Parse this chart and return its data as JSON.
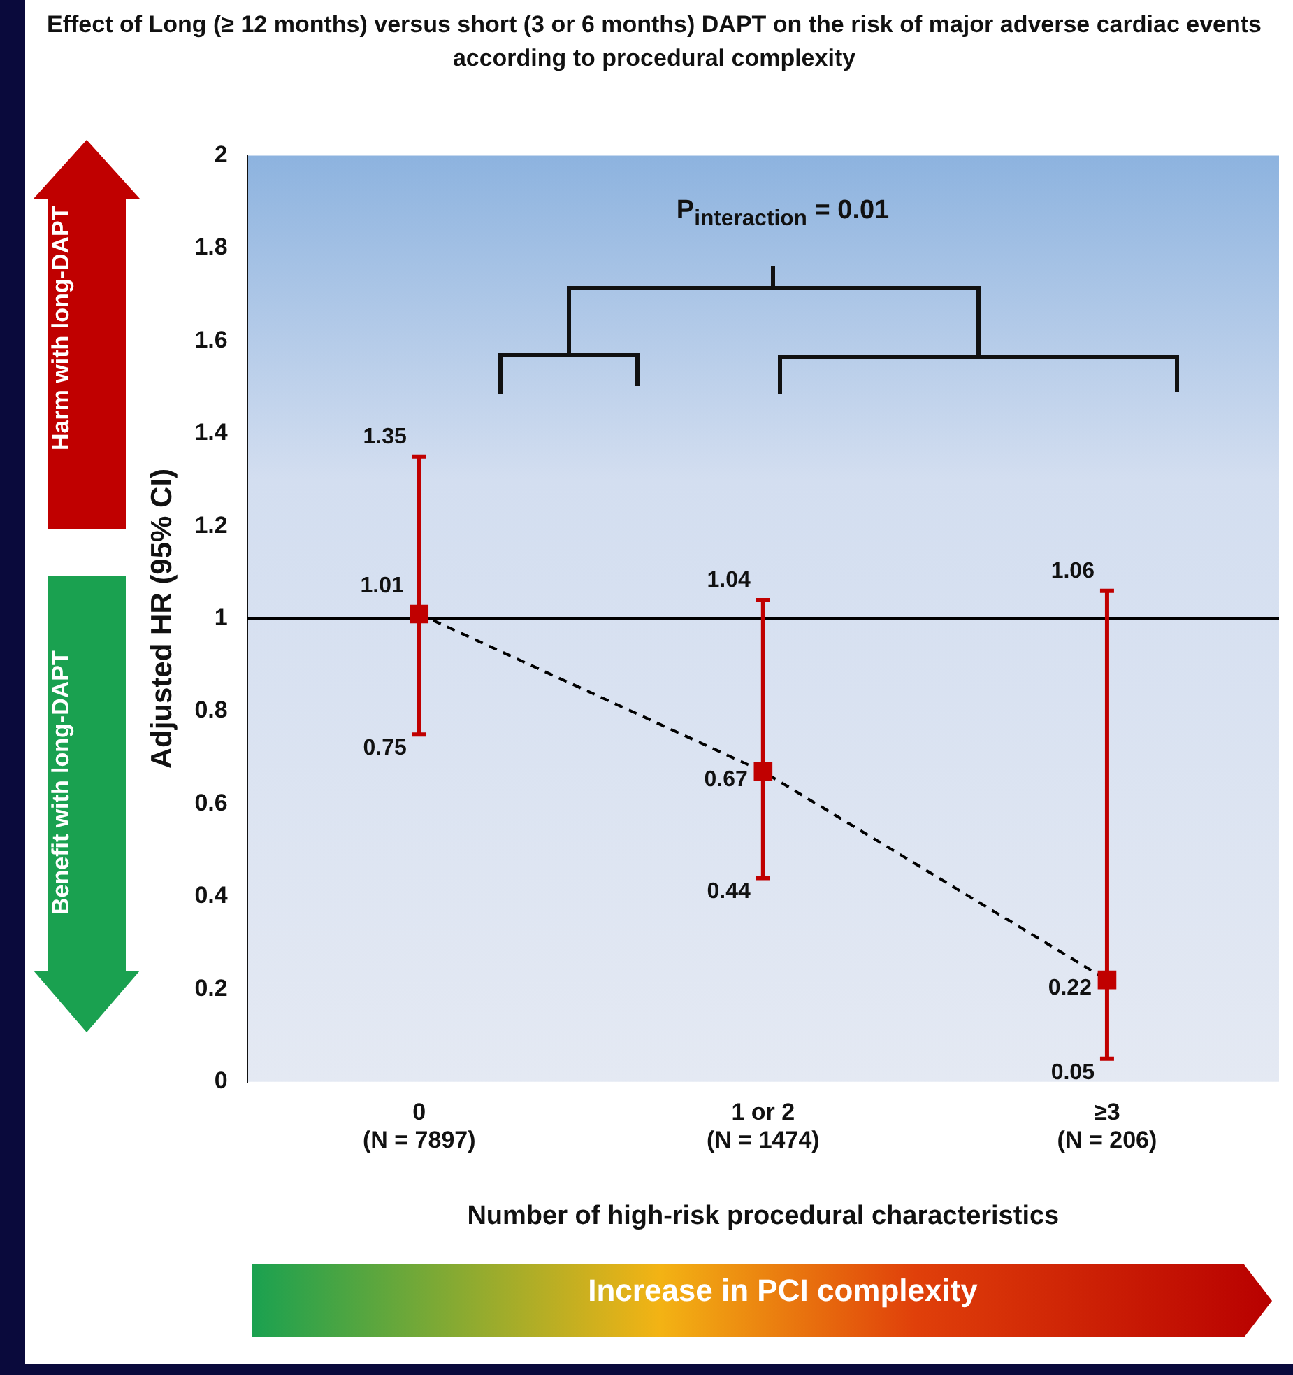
{
  "chart_data": {
    "type": "scatter",
    "title": "Effect of Long (≥ 12 months) versus short (3 or 6 months) DAPT on the risk of major adverse cardiac events according to procedural complexity",
    "xlabel": "Number of high-risk procedural characteristics",
    "ylabel": "Adjusted HR (95% CI)",
    "categories": [
      "0\n(N = 7897)",
      "1 or 2\n(N = 1474)",
      "≥3\n(N = 206)"
    ],
    "series": [
      {
        "color": "#c00000",
        "values": [
          1.01,
          0.67,
          0.22
        ],
        "value_labels": [
          "1.01",
          "0.67",
          "0.22"
        ],
        "errors": [
          [
            0.75,
            1.35
          ],
          [
            0.44,
            1.04
          ],
          [
            0.05,
            1.06
          ]
        ],
        "marker": "square"
      },
      {
        "type": "line",
        "color": "#000000",
        "values": [
          1.01,
          0.67,
          0.22
        ],
        "line_style": "dashed",
        "marker": "none"
      }
    ],
    "ylim": [
      0,
      2
    ],
    "yticks": [
      0,
      0.2,
      0.4,
      0.6,
      0.8,
      1,
      1.2,
      1.4,
      1.6,
      1.8,
      2
    ],
    "ref_lines": [
      {
        "axis": "y",
        "value": 1,
        "color": "#000000"
      }
    ],
    "grid": false,
    "legend": false,
    "annotations": [
      "P$_{interaction}$ = 0.01",
      "Harm with long-DAPT",
      "Benefit with long-DAPT",
      "Increase in PCI complexity",
      {
        "text": "1.35",
        "x": "0\n(N = 7897)",
        "y": 1.35
      },
      {
        "text": "0.75",
        "x": "0\n(N = 7897)",
        "y": 0.75
      },
      {
        "text": "1.04",
        "x": "1 or 2\n(N = 1474)",
        "y": 1.04
      },
      {
        "text": "0.44",
        "x": "1 or 2\n(N = 1474)",
        "y": 0.44
      },
      {
        "text": "1.06",
        "x": "≥3\n(N = 206)",
        "y": 1.06
      },
      {
        "text": "0.05",
        "x": "≥3\n(N = 206)",
        "y": 0.05
      }
    ]
  }
}
